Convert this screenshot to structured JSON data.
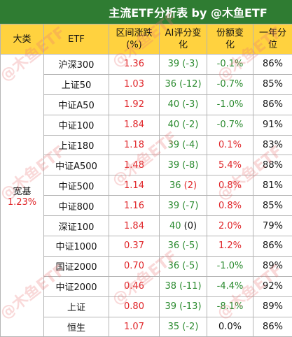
{
  "title": "主流ETF分析表 by @木鱼ETF",
  "headers": {
    "category": "大类",
    "etf": "ETF",
    "change_line1": "区间涨跌",
    "change_line2": "(%)",
    "ai_line1": "AI评分变",
    "ai_line2": "化",
    "share_line1": "份额变",
    "share_line2": "化",
    "pct_line1": "一年分",
    "pct_line2": "位"
  },
  "category": {
    "name": "宽基",
    "value": "1.23%"
  },
  "watermark": "@木鱼ETF",
  "colors": {
    "header_bg": "#2f7c32",
    "column_header_bg": "#ffd23f",
    "positive": "#e0262a",
    "negative": "#2a8a2e"
  },
  "rows": [
    {
      "etf": "沪深300",
      "change": "1.36",
      "ai_score": "39",
      "ai_delta": "(-3)",
      "ai_delta_color": "green",
      "share": "-0.1%",
      "share_color": "green",
      "percentile": "86%"
    },
    {
      "etf": "上证50",
      "change": "1.03",
      "ai_score": "36",
      "ai_delta": "(-12)",
      "ai_delta_color": "green",
      "share": "-0.7%",
      "share_color": "green",
      "percentile": "85%"
    },
    {
      "etf": "中证A50",
      "change": "1.92",
      "ai_score": "40",
      "ai_delta": "(-3)",
      "ai_delta_color": "green",
      "share": "-1.0%",
      "share_color": "green",
      "percentile": "86%"
    },
    {
      "etf": "中证100",
      "change": "1.84",
      "ai_score": "40",
      "ai_delta": "(-2)",
      "ai_delta_color": "green",
      "share": "-0.7%",
      "share_color": "green",
      "percentile": "91%"
    },
    {
      "etf": "上证180",
      "change": "1.18",
      "ai_score": "39",
      "ai_delta": "(-4)",
      "ai_delta_color": "green",
      "share": "0.1%",
      "share_color": "red",
      "percentile": "83%"
    },
    {
      "etf": "中证A500",
      "change": "1.48",
      "ai_score": "39",
      "ai_delta": "(-8)",
      "ai_delta_color": "green",
      "share": "5.4%",
      "share_color": "red",
      "percentile": "88%"
    },
    {
      "etf": "中证500",
      "change": "1.14",
      "ai_score": "36",
      "ai_delta": "(2)",
      "ai_delta_color": "red",
      "share": "0.8%",
      "share_color": "red",
      "percentile": "81%"
    },
    {
      "etf": "中证800",
      "change": "1.16",
      "ai_score": "39",
      "ai_delta": "(-7)",
      "ai_delta_color": "green",
      "share": "0.8%",
      "share_color": "red",
      "percentile": "85%"
    },
    {
      "etf": "深证100",
      "change": "1.84",
      "ai_score": "40",
      "ai_delta": "(0)",
      "ai_delta_color": "dark",
      "share": "2.0%",
      "share_color": "red",
      "percentile": "79%"
    },
    {
      "etf": "中证1000",
      "change": "0.37",
      "ai_score": "36",
      "ai_delta": "(-5)",
      "ai_delta_color": "green",
      "share": "1.2%",
      "share_color": "red",
      "percentile": "86%"
    },
    {
      "etf": "国证2000",
      "change": "0.70",
      "ai_score": "36",
      "ai_delta": "(-5)",
      "ai_delta_color": "green",
      "share": "-1.0%",
      "share_color": "green",
      "percentile": "89%"
    },
    {
      "etf": "中证2000",
      "change": "0.46",
      "ai_score": "38",
      "ai_delta": "(-11)",
      "ai_delta_color": "green",
      "share": "-4.4%",
      "share_color": "green",
      "percentile": "92%"
    },
    {
      "etf": "上证",
      "change": "0.80",
      "ai_score": "39",
      "ai_delta": "(-13)",
      "ai_delta_color": "green",
      "share": "-8.1%",
      "share_color": "green",
      "percentile": "89%"
    },
    {
      "etf": "恒生",
      "change": "1.07",
      "ai_score": "35",
      "ai_delta": "(-2)",
      "ai_delta_color": "green",
      "share": "0.0%",
      "share_color": "dark",
      "percentile": "86%"
    }
  ]
}
